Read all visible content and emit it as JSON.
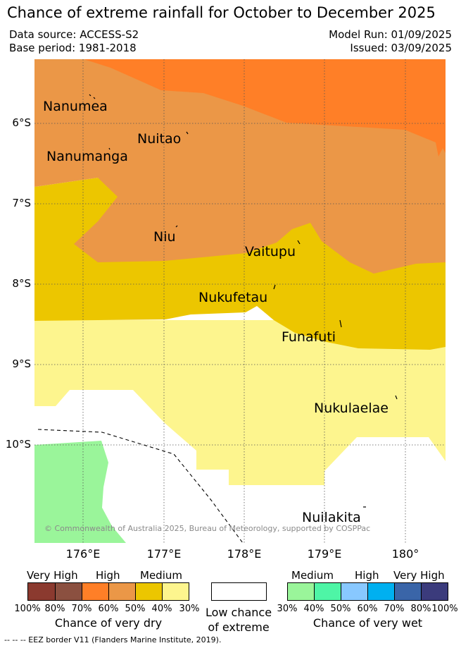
{
  "title": "Chance of extreme rainfall for October to December 2025",
  "header": {
    "data_source": "Data source: ACCESS-S2",
    "base_period": "Base period: 1981-2018",
    "model_run": "Model Run: 01/09/2025",
    "issued": "Issued: 03/09/2025"
  },
  "axes": {
    "lat_labels": [
      "6°S",
      "7°S",
      "8°S",
      "9°S",
      "10°S"
    ],
    "lon_labels": [
      "176°E",
      "177°E",
      "178°E",
      "179°E",
      "180°"
    ]
  },
  "places": {
    "nanumea": "Nanumea",
    "nuitao": "Nuitao",
    "nanumanga": "Nanumanga",
    "niu": "Niu",
    "vaitupu": "Vaitupu",
    "nukufetau": "Nukufetau",
    "funafuti": "Funafuti",
    "nukulaelae": "Nukulaelae",
    "nuilakita": "Nuilakita"
  },
  "copyright": "© Commonwealth of Australia 2025, Bureau of Meteorology, supported by COSPPac",
  "legend": {
    "dry": {
      "very_high": "Very High",
      "high": "High",
      "medium": "Medium",
      "caption": "Chance of very dry",
      "percents": [
        "100%",
        "80%",
        "70%",
        "60%",
        "50%",
        "40%",
        "30%"
      ],
      "colors": [
        "#8b3a2f",
        "#8b5040",
        "#ff7f27",
        "#eb9747",
        "#ecc600",
        "#fdf58e"
      ]
    },
    "low": {
      "line1": "Low chance",
      "line2": "of extreme"
    },
    "wet": {
      "medium": "Medium",
      "high": "High",
      "very_high": "Very High",
      "caption": "Chance of very wet",
      "percents": [
        "30%",
        "40%",
        "50%",
        "60%",
        "70%",
        "80%",
        "100%"
      ],
      "colors": [
        "#9af59a",
        "#4ef5a6",
        "#88c8ff",
        "#00b0f0",
        "#3a65a8",
        "#3b3b7c"
      ]
    }
  },
  "footer": {
    "eez": "--  --  -- EEZ border V11 (Flanders Marine Institute, 2019)."
  },
  "colors": {
    "dry_high": "#ff7f27",
    "dry_medium_high": "#eb9747",
    "dry_medium": "#ecc600",
    "dry_low": "#fdf58e",
    "wet_medium": "#9af59a"
  }
}
